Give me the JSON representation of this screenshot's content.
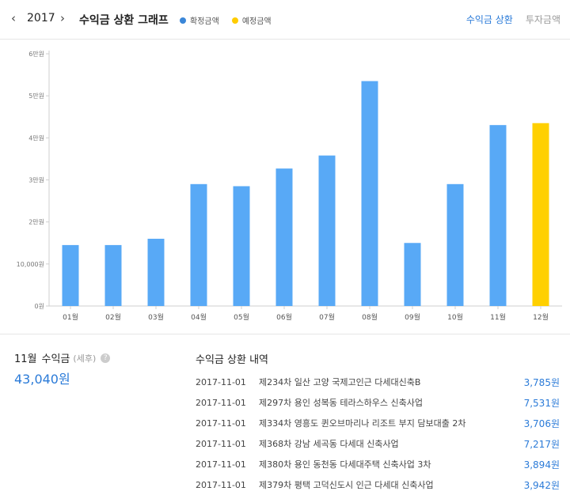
{
  "header": {
    "prev_icon": "chevron-left-icon",
    "year": "2017",
    "next_icon": "chevron-right-icon",
    "title": "수익금 상환 그래프",
    "legend": [
      {
        "label": "확정금액",
        "color": "#3a86d8"
      },
      {
        "label": "예정금액",
        "color": "#ffcc00"
      }
    ],
    "tabs": [
      {
        "label": "수익금 상환",
        "active": true
      },
      {
        "label": "투자금액",
        "active": false
      }
    ]
  },
  "chart_data": {
    "type": "bar",
    "categories": [
      "01월",
      "02월",
      "03월",
      "04월",
      "05월",
      "06월",
      "07월",
      "08월",
      "09월",
      "10월",
      "11월",
      "12월"
    ],
    "values": [
      14500,
      14500,
      16000,
      29000,
      28500,
      32700,
      35800,
      53500,
      15000,
      29000,
      43040,
      43500
    ],
    "bar_status": [
      "confirmed",
      "confirmed",
      "confirmed",
      "confirmed",
      "confirmed",
      "confirmed",
      "confirmed",
      "confirmed",
      "confirmed",
      "confirmed",
      "confirmed",
      "expected"
    ],
    "ylim": [
      0,
      60000
    ],
    "yticks": [
      0,
      10000,
      20000,
      30000,
      40000,
      50000,
      60000
    ],
    "ytick_labels": [
      "0원",
      "10,000원",
      "2만원",
      "3만원",
      "4만원",
      "5만원",
      "6만원"
    ],
    "colors": {
      "confirmed": "#58a9f6",
      "expected": "#ffd000"
    },
    "grid": false
  },
  "summary": {
    "month": "11월",
    "label": "수익금",
    "tax_note": "(세후)",
    "info_icon": "question-icon",
    "amount": "43,040원"
  },
  "history": {
    "title": "수익금 상환 내역",
    "rows": [
      {
        "date": "2017-11-01",
        "desc": "제234차 일산 고양 국제고인근 다세대신축B",
        "amount": "3,785원"
      },
      {
        "date": "2017-11-01",
        "desc": "제297차 용인 성복동 테라스하우스 신축사업",
        "amount": "7,531원"
      },
      {
        "date": "2017-11-01",
        "desc": "제334차 영흥도 퀸오브마리나 리조트 부지 담보대출 2차",
        "amount": "3,706원"
      },
      {
        "date": "2017-11-01",
        "desc": "제368차 강남 세곡동 다세대 신축사업",
        "amount": "7,217원"
      },
      {
        "date": "2017-11-01",
        "desc": "제380차 용인 동천동 다세대주택 신축사업 3차",
        "amount": "3,894원"
      },
      {
        "date": "2017-11-01",
        "desc": "제379차 평택 고덕신도시 인근 다세대 신축사업",
        "amount": "3,942원"
      }
    ]
  }
}
